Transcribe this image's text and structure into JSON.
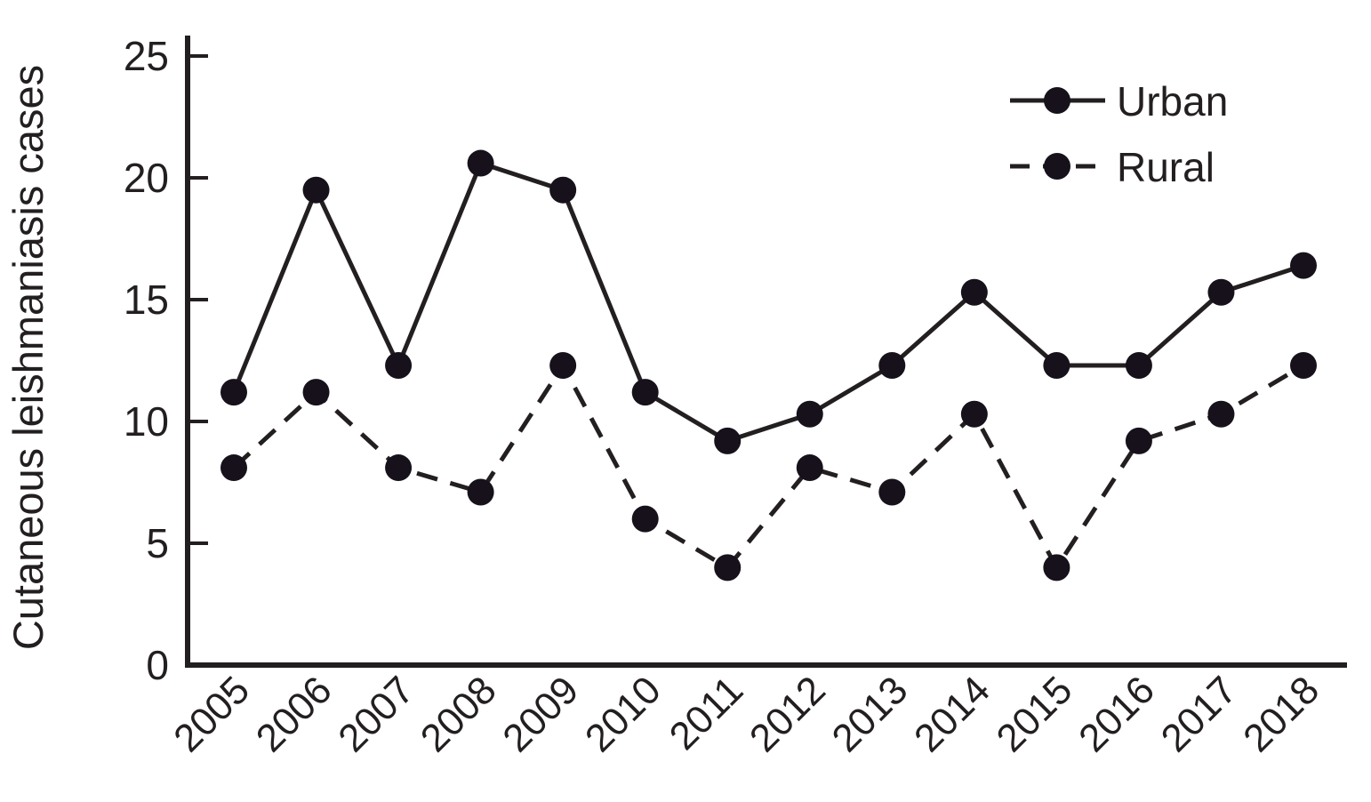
{
  "chart_data": {
    "type": "line",
    "title": "",
    "xlabel": "",
    "ylabel": "Cutaneous leishmaniasis cases",
    "categories": [
      "2005",
      "2006",
      "2007",
      "2008",
      "2009",
      "2010",
      "2011",
      "2012",
      "2013",
      "2014",
      "2015",
      "2016",
      "2017",
      "2018"
    ],
    "series": [
      {
        "name": "Urban",
        "line_style": "solid",
        "marker": "filled-circle",
        "values": [
          11.2,
          19.5,
          12.3,
          20.6,
          19.5,
          11.2,
          9.2,
          10.3,
          12.3,
          15.3,
          12.3,
          12.3,
          15.3,
          16.4
        ]
      },
      {
        "name": "Rural",
        "line_style": "dashed",
        "marker": "filled-circle",
        "values": [
          8.1,
          11.2,
          8.1,
          7.1,
          12.3,
          6.0,
          4.0,
          8.1,
          7.1,
          10.3,
          4.0,
          9.2,
          10.3,
          12.3
        ]
      }
    ],
    "ylim": [
      0,
      25
    ],
    "yticks": [
      0,
      5,
      10,
      15,
      20,
      25
    ],
    "xtick_rotation_deg": 45,
    "grid": false,
    "legend_position": "top-right"
  },
  "colors": {
    "ink": "#231f20",
    "marker_fill": "#16111a",
    "background": "#ffffff"
  }
}
